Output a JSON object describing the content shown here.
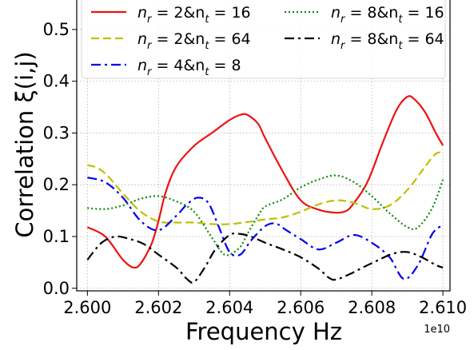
{
  "chart_data": {
    "type": "line",
    "xlabel": "Frequency Hz",
    "ylabel": "Correlation ξ(i,j)",
    "x_offset_label": "1e10",
    "xlim": [
      2.5997,
      2.6102
    ],
    "ylim": [
      -0.005,
      0.56
    ],
    "xticks": [
      2.6,
      2.602,
      2.604,
      2.606,
      2.608,
      2.61
    ],
    "xtick_labels": [
      "2.600",
      "2.602",
      "2.604",
      "2.606",
      "2.608",
      "2.610"
    ],
    "yticks": [
      0.0,
      0.1,
      0.2,
      0.3,
      0.4,
      0.5
    ],
    "ytick_labels": [
      "0.0",
      "0.1",
      "0.2",
      "0.3",
      "0.4",
      "0.5"
    ],
    "grid": true,
    "legend_position": "top",
    "series": [
      {
        "name": "n_r = 2&n_t = 16",
        "legend": {
          "a": "n",
          "as": "r",
          "b": " = 2&n",
          "bs": "t",
          "c": " = 16"
        },
        "color": "#ee1111",
        "dash": "solid",
        "x": [
          2.6,
          2.6005,
          2.601,
          2.6013,
          2.6015,
          2.6018,
          2.602,
          2.6022,
          2.6025,
          2.603,
          2.6035,
          2.604,
          2.6043,
          2.6045,
          2.6048,
          2.605,
          2.6055,
          2.606,
          2.6065,
          2.607,
          2.6073,
          2.6075,
          2.6078,
          2.608,
          2.6083,
          2.6087,
          2.609,
          2.6092,
          2.6095,
          2.6098,
          2.61
        ],
        "y": [
          0.118,
          0.1,
          0.055,
          0.04,
          0.048,
          0.085,
          0.13,
          0.185,
          0.235,
          0.275,
          0.3,
          0.325,
          0.335,
          0.335,
          0.318,
          0.29,
          0.225,
          0.17,
          0.152,
          0.146,
          0.15,
          0.165,
          0.195,
          0.225,
          0.28,
          0.345,
          0.37,
          0.365,
          0.34,
          0.3,
          0.276
        ]
      },
      {
        "name": "n_r = 2&n_t = 64",
        "legend": {
          "a": "n",
          "as": "r",
          "b": " = 2&n",
          "bs": "t",
          "c": " = 64"
        },
        "color": "#bfbf00",
        "dash": "10,5",
        "x": [
          2.6,
          2.6003,
          2.6006,
          2.601,
          2.6015,
          2.602,
          2.6025,
          2.603,
          2.6035,
          2.604,
          2.6045,
          2.605,
          2.6055,
          2.606,
          2.6065,
          2.607,
          2.6075,
          2.608,
          2.6085,
          2.609,
          2.6095,
          2.6098,
          2.61
        ],
        "y": [
          0.238,
          0.232,
          0.215,
          0.183,
          0.148,
          0.129,
          0.127,
          0.127,
          0.124,
          0.124,
          0.128,
          0.133,
          0.137,
          0.148,
          0.162,
          0.17,
          0.165,
          0.153,
          0.16,
          0.19,
          0.235,
          0.26,
          0.262
        ]
      },
      {
        "name": "n_r = 4&n_t = 8",
        "legend": {
          "a": "n",
          "as": "r",
          "b": " = 4&n",
          "bs": "t",
          "c": " = 8"
        },
        "color": "#0000ee",
        "dash": "12,5,3,5",
        "x": [
          2.6,
          2.6005,
          2.601,
          2.6015,
          2.602,
          2.6025,
          2.6028,
          2.6031,
          2.6034,
          2.6037,
          2.604,
          2.6043,
          2.6046,
          2.605,
          2.6053,
          2.6056,
          2.606,
          2.6065,
          2.607,
          2.6075,
          2.608,
          2.6085,
          2.6089,
          2.6093,
          2.6097,
          2.61
        ],
        "y": [
          0.214,
          0.205,
          0.175,
          0.13,
          0.112,
          0.14,
          0.162,
          0.175,
          0.165,
          0.118,
          0.07,
          0.065,
          0.092,
          0.12,
          0.125,
          0.112,
          0.095,
          0.075,
          0.088,
          0.103,
          0.088,
          0.06,
          0.018,
          0.045,
          0.105,
          0.122
        ]
      },
      {
        "name": "n_r = 8&n_t = 16",
        "legend": {
          "a": "n",
          "as": "r",
          "b": " = 8&n",
          "bs": "t",
          "c": " = 16"
        },
        "color": "#0a8a0a",
        "dash": "2,3",
        "x": [
          2.6,
          2.6005,
          2.601,
          2.6015,
          2.602,
          2.6025,
          2.603,
          2.6035,
          2.6038,
          2.604,
          2.6043,
          2.6045,
          2.6048,
          2.605,
          2.6055,
          2.606,
          2.6065,
          2.607,
          2.6075,
          2.608,
          2.6085,
          2.609,
          2.6093,
          2.6097,
          2.61
        ],
        "y": [
          0.155,
          0.153,
          0.16,
          0.173,
          0.178,
          0.168,
          0.148,
          0.098,
          0.068,
          0.065,
          0.08,
          0.105,
          0.14,
          0.158,
          0.172,
          0.195,
          0.21,
          0.218,
          0.205,
          0.178,
          0.145,
          0.118,
          0.118,
          0.155,
          0.21
        ]
      },
      {
        "name": "n_r = 8&n_t = 64",
        "legend": {
          "a": "n",
          "as": "r",
          "b": " = 8&n",
          "bs": "t",
          "c": " = 64"
        },
        "color": "#000000",
        "dash": "12,5,3,5",
        "x": [
          2.6,
          2.6004,
          2.6008,
          2.6012,
          2.6016,
          2.602,
          2.6025,
          2.6028,
          2.603,
          2.6033,
          2.6036,
          2.604,
          2.6043,
          2.6046,
          2.605,
          2.6055,
          2.606,
          2.6065,
          2.6068,
          2.607,
          2.6074,
          2.6078,
          2.6082,
          2.6086,
          2.609,
          2.6094,
          2.6098,
          2.61
        ],
        "y": [
          0.055,
          0.088,
          0.1,
          0.095,
          0.085,
          0.065,
          0.04,
          0.018,
          0.012,
          0.04,
          0.075,
          0.103,
          0.105,
          0.1,
          0.088,
          0.075,
          0.06,
          0.038,
          0.02,
          0.017,
          0.028,
          0.042,
          0.055,
          0.067,
          0.07,
          0.06,
          0.045,
          0.04
        ]
      }
    ]
  }
}
